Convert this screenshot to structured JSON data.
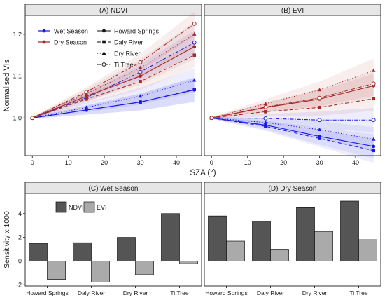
{
  "chart_data": [
    {
      "type": "line",
      "panel": "top",
      "ylabel": "Normalised VIs",
      "xlabel": "SZA (°)",
      "x": [
        0,
        15,
        30,
        45
      ],
      "xlim": [
        -2,
        47
      ],
      "ylim": [
        0.91,
        1.245
      ],
      "xticks": [
        0,
        10,
        20,
        30,
        40
      ],
      "yticks": [
        1.0,
        1.1,
        1.2
      ],
      "ytick_labels": [
        "1.0",
        "1.1",
        "1.2"
      ],
      "legend": {
        "position": "top-left",
        "seasons": [
          {
            "name": "Wet Season",
            "color": "#1a1ae6"
          },
          {
            "name": "Dry Season",
            "color": "#a52a2a"
          }
        ],
        "sites": [
          {
            "name": "Howard Springs",
            "marker": "circle",
            "dash": "solid"
          },
          {
            "name": "Daly River",
            "marker": "square",
            "dash": "dashed"
          },
          {
            "name": "Dry River",
            "marker": "triangle",
            "dash": "dotted"
          },
          {
            "name": "Ti Tree",
            "marker": "open-circle",
            "dash": "dotdash"
          }
        ]
      },
      "facets": [
        {
          "title": "(A) NDVI",
          "series": [
            {
              "season": "Wet Season",
              "site": "Howard Springs",
              "values": [
                1.0,
                1.019,
                1.038,
                1.067
              ]
            },
            {
              "season": "Wet Season",
              "site": "Daly River",
              "values": [
                1.0,
                1.019,
                1.038,
                1.068
              ]
            },
            {
              "season": "Wet Season",
              "site": "Dry River",
              "values": [
                1.0,
                1.025,
                1.052,
                1.09
              ]
            },
            {
              "season": "Wet Season",
              "site": "Ti Tree",
              "values": [
                1.0,
                1.048,
                1.11,
                1.18
              ]
            },
            {
              "season": "Dry Season",
              "site": "Howard Springs",
              "values": [
                1.0,
                1.052,
                1.1,
                1.17
              ]
            },
            {
              "season": "Dry Season",
              "site": "Daly River",
              "values": [
                1.0,
                1.045,
                1.087,
                1.15
              ]
            },
            {
              "season": "Dry Season",
              "site": "Dry River",
              "values": [
                1.0,
                1.058,
                1.12,
                1.2
              ]
            },
            {
              "season": "Dry Season",
              "site": "Ti Tree",
              "values": [
                1.0,
                1.062,
                1.133,
                1.225
              ]
            }
          ]
        },
        {
          "title": "(B) EVI",
          "series": [
            {
              "season": "Wet Season",
              "site": "Howard Springs",
              "values": [
                1.0,
                0.983,
                0.956,
                0.932
              ]
            },
            {
              "season": "Wet Season",
              "site": "Daly River",
              "values": [
                1.0,
                0.98,
                0.951,
                0.922
              ]
            },
            {
              "season": "Wet Season",
              "site": "Dry River",
              "values": [
                1.0,
                0.989,
                0.972,
                0.949
              ]
            },
            {
              "season": "Wet Season",
              "site": "Ti Tree",
              "values": [
                1.0,
                0.999,
                0.995,
                0.995
              ]
            },
            {
              "season": "Dry Season",
              "site": "Howard Springs",
              "values": [
                1.0,
                1.025,
                1.045,
                1.077
              ]
            },
            {
              "season": "Dry Season",
              "site": "Daly River",
              "values": [
                1.0,
                1.015,
                1.025,
                1.046
              ]
            },
            {
              "season": "Dry Season",
              "site": "Dry River",
              "values": [
                1.0,
                1.034,
                1.067,
                1.113
              ]
            },
            {
              "season": "Dry Season",
              "site": "Ti Tree",
              "values": [
                1.0,
                1.026,
                1.048,
                1.082
              ]
            }
          ]
        }
      ]
    },
    {
      "type": "bar",
      "panel": "bottom",
      "ylabel": "Sensitivity x 1000",
      "categories": [
        "Howard Springs",
        "Daly River",
        "Dry River",
        "Ti Tree"
      ],
      "ylim": [
        -2.1,
        5.7
      ],
      "yticks": [
        -2,
        0,
        2,
        4
      ],
      "legend": {
        "position": "top-left",
        "items": [
          {
            "name": "NDVI",
            "color": "#555555"
          },
          {
            "name": "EVI",
            "color": "#aaaaaa"
          }
        ]
      },
      "facets": [
        {
          "title": "(C) Wet Season",
          "series": [
            {
              "name": "NDVI",
              "values": [
                1.5,
                1.55,
                2.0,
                4.0
              ]
            },
            {
              "name": "EVI",
              "values": [
                -1.55,
                -1.78,
                -1.15,
                -0.22
              ]
            }
          ]
        },
        {
          "title": "(D) Dry Season",
          "series": [
            {
              "name": "NDVI",
              "values": [
                3.8,
                3.35,
                4.5,
                5.05
              ]
            },
            {
              "name": "EVI",
              "values": [
                1.68,
                1.0,
                2.5,
                1.8
              ]
            }
          ]
        }
      ]
    }
  ]
}
